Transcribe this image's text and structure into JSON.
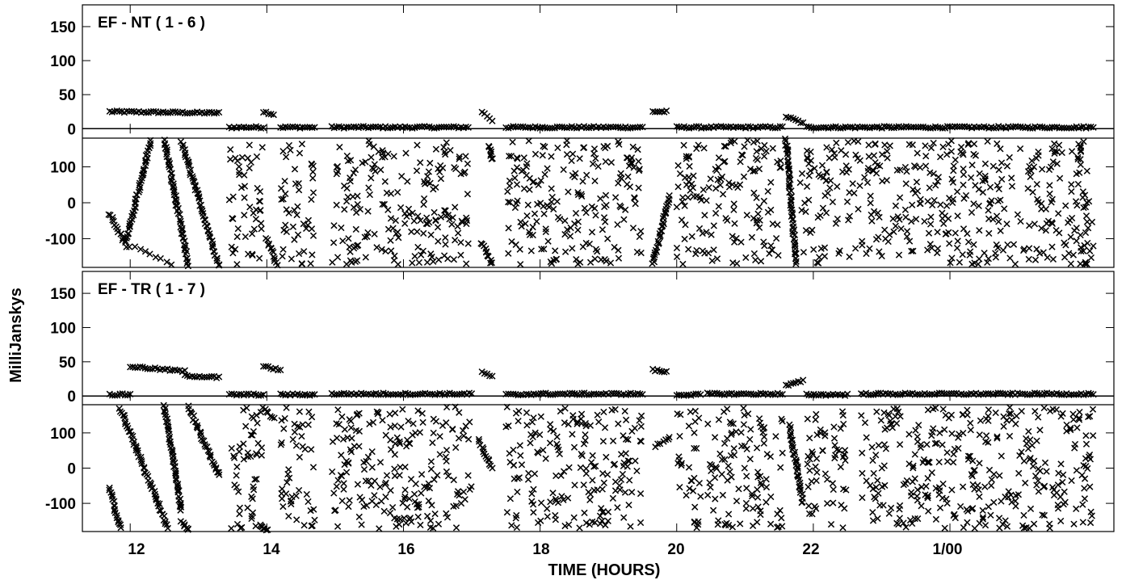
{
  "axes": {
    "xlabel": "TIME (HOURS)",
    "ylabel": "MilliJanskys",
    "x_tick_labels": [
      "12",
      "14",
      "16",
      "18",
      "20",
      "22",
      "1/00"
    ]
  },
  "chart_data": [
    {
      "type": "scatter",
      "title": "EF - NT ( 1 - 6 )",
      "xlabel": "TIME (HOURS)",
      "ylabel": "MilliJanskys",
      "xlim": [
        11.3,
        26.4
      ],
      "x_ticks": [
        12,
        14,
        16,
        18,
        20,
        22,
        24
      ],
      "x_tick_labels": [
        "12",
        "14",
        "16",
        "18",
        "20",
        "22",
        "1/00"
      ],
      "amplitude": {
        "ylim": [
          -8,
          182
        ],
        "y_ticks": [
          0,
          50,
          100,
          150
        ],
        "y_tick_labels": [
          "0",
          "50",
          "100",
          "150"
        ],
        "reference_line": 0,
        "segments": [
          {
            "x_start": 11.7,
            "x_end": 13.3,
            "y_start": 25,
            "y_end": 23
          },
          {
            "x_start": 13.45,
            "x_end": 13.95,
            "y_start": 2,
            "y_end": 2
          },
          {
            "x_start": 13.95,
            "x_end": 14.1,
            "y_start": 25,
            "y_end": 21
          },
          {
            "x_start": 14.2,
            "x_end": 14.7,
            "y_start": 2,
            "y_end": 2
          },
          {
            "x_start": 14.95,
            "x_end": 16.95,
            "y_start": 2,
            "y_end": 2
          },
          {
            "x_start": 17.15,
            "x_end": 17.3,
            "y_start": 25,
            "y_end": 12
          },
          {
            "x_start": 17.5,
            "x_end": 19.5,
            "y_start": 2,
            "y_end": 2
          },
          {
            "x_start": 19.65,
            "x_end": 19.85,
            "y_start": 25,
            "y_end": 25
          },
          {
            "x_start": 20.0,
            "x_end": 21.55,
            "y_start": 2,
            "y_end": 2
          },
          {
            "x_start": 21.6,
            "x_end": 21.85,
            "y_start": 18,
            "y_end": 8
          },
          {
            "x_start": 21.9,
            "x_end": 26.1,
            "y_start": 2,
            "y_end": 2
          }
        ]
      },
      "phase": {
        "ylim": [
          -180,
          180
        ],
        "y_ticks": [
          -100,
          0,
          100
        ],
        "y_tick_labels": [
          "-100",
          "0",
          "100"
        ],
        "reference_line": 180,
        "tracks": [
          {
            "x_start": 11.7,
            "x_end": 11.95,
            "y_start": -30,
            "y_end": -120
          },
          {
            "x_start": 11.95,
            "x_end": 12.3,
            "y_start": -100,
            "y_end": 175
          },
          {
            "x_start": 12.0,
            "x_end": 12.6,
            "y_start": -120,
            "y_end": -170
          },
          {
            "x_start": 12.5,
            "x_end": 12.85,
            "y_start": 175,
            "y_end": -175
          },
          {
            "x_start": 12.75,
            "x_end": 13.3,
            "y_start": 170,
            "y_end": -175
          },
          {
            "x_start": 14.0,
            "x_end": 14.15,
            "y_start": -100,
            "y_end": -170
          },
          {
            "x_start": 17.15,
            "x_end": 17.3,
            "y_start": -110,
            "y_end": -170
          },
          {
            "x_start": 17.25,
            "x_end": 17.3,
            "y_start": 160,
            "y_end": 120
          },
          {
            "x_start": 19.65,
            "x_end": 19.9,
            "y_start": -170,
            "y_end": 20
          },
          {
            "x_start": 21.6,
            "x_end": 21.75,
            "y_start": 175,
            "y_end": -170
          }
        ],
        "noise_blocks": [
          {
            "x_start": 13.45,
            "x_end": 13.95
          },
          {
            "x_start": 14.2,
            "x_end": 14.7
          },
          {
            "x_start": 14.95,
            "x_end": 16.95
          },
          {
            "x_start": 17.5,
            "x_end": 19.5
          },
          {
            "x_start": 20.0,
            "x_end": 21.55
          },
          {
            "x_start": 21.8,
            "x_end": 26.1
          }
        ]
      }
    },
    {
      "type": "scatter",
      "title": "EF - TR ( 1 - 7 )",
      "xlabel": "TIME (HOURS)",
      "ylabel": "MilliJanskys",
      "xlim": [
        11.3,
        26.4
      ],
      "x_ticks": [
        12,
        14,
        16,
        18,
        20,
        22,
        24
      ],
      "x_tick_labels": [
        "12",
        "14",
        "16",
        "18",
        "20",
        "22",
        "1/00"
      ],
      "amplitude": {
        "ylim": [
          -8,
          182
        ],
        "y_ticks": [
          0,
          50,
          100,
          150
        ],
        "y_tick_labels": [
          "0",
          "50",
          "100",
          "150"
        ],
        "reference_line": 0,
        "segments": [
          {
            "x_start": 11.7,
            "x_end": 12.0,
            "y_start": 2,
            "y_end": 2
          },
          {
            "x_start": 12.0,
            "x_end": 12.8,
            "y_start": 43,
            "y_end": 36
          },
          {
            "x_start": 12.8,
            "x_end": 13.3,
            "y_start": 30,
            "y_end": 27
          },
          {
            "x_start": 13.45,
            "x_end": 13.95,
            "y_start": 2,
            "y_end": 2
          },
          {
            "x_start": 13.95,
            "x_end": 14.2,
            "y_start": 43,
            "y_end": 38
          },
          {
            "x_start": 14.2,
            "x_end": 14.7,
            "y_start": 2,
            "y_end": 2
          },
          {
            "x_start": 14.95,
            "x_end": 17.0,
            "y_start": 3,
            "y_end": 3
          },
          {
            "x_start": 17.15,
            "x_end": 17.3,
            "y_start": 35,
            "y_end": 28
          },
          {
            "x_start": 17.5,
            "x_end": 17.75,
            "y_start": 2,
            "y_end": 2
          },
          {
            "x_start": 17.8,
            "x_end": 19.0,
            "y_start": 3,
            "y_end": 3
          },
          {
            "x_start": 19.05,
            "x_end": 19.5,
            "y_start": 3,
            "y_end": 3
          },
          {
            "x_start": 19.65,
            "x_end": 19.85,
            "y_start": 38,
            "y_end": 35
          },
          {
            "x_start": 20.0,
            "x_end": 20.35,
            "y_start": 2,
            "y_end": 2
          },
          {
            "x_start": 20.45,
            "x_end": 21.55,
            "y_start": 3,
            "y_end": 3
          },
          {
            "x_start": 21.6,
            "x_end": 21.85,
            "y_start": 15,
            "y_end": 22
          },
          {
            "x_start": 21.9,
            "x_end": 22.5,
            "y_start": 2,
            "y_end": 2
          },
          {
            "x_start": 22.7,
            "x_end": 26.1,
            "y_start": 3,
            "y_end": 3
          }
        ]
      },
      "phase": {
        "ylim": [
          -180,
          180
        ],
        "y_ticks": [
          -100,
          0,
          100
        ],
        "y_tick_labels": [
          "-100",
          "0",
          "100"
        ],
        "reference_line": 180,
        "tracks": [
          {
            "x_start": 11.7,
            "x_end": 11.85,
            "y_start": -60,
            "y_end": -170
          },
          {
            "x_start": 11.85,
            "x_end": 12.0,
            "y_start": 170,
            "y_end": 100
          },
          {
            "x_start": 12.0,
            "x_end": 12.55,
            "y_start": 100,
            "y_end": -170
          },
          {
            "x_start": 12.5,
            "x_end": 12.75,
            "y_start": 175,
            "y_end": -120
          },
          {
            "x_start": 12.75,
            "x_end": 12.85,
            "y_start": -150,
            "y_end": -175
          },
          {
            "x_start": 12.85,
            "x_end": 13.3,
            "y_start": 175,
            "y_end": -20
          },
          {
            "x_start": 13.95,
            "x_end": 14.1,
            "y_start": 170,
            "y_end": 140
          },
          {
            "x_start": 13.9,
            "x_end": 14.0,
            "y_start": -160,
            "y_end": -175
          },
          {
            "x_start": 17.1,
            "x_end": 17.3,
            "y_start": 80,
            "y_end": 0
          },
          {
            "x_start": 19.7,
            "x_end": 19.9,
            "y_start": 60,
            "y_end": 90
          },
          {
            "x_start": 21.65,
            "x_end": 21.85,
            "y_start": 120,
            "y_end": -100
          }
        ],
        "noise_blocks": [
          {
            "x_start": 13.45,
            "x_end": 13.95
          },
          {
            "x_start": 14.2,
            "x_end": 14.7
          },
          {
            "x_start": 14.95,
            "x_end": 17.0
          },
          {
            "x_start": 17.5,
            "x_end": 17.75
          },
          {
            "x_start": 17.8,
            "x_end": 19.0
          },
          {
            "x_start": 19.05,
            "x_end": 19.5
          },
          {
            "x_start": 20.0,
            "x_end": 20.35
          },
          {
            "x_start": 20.45,
            "x_end": 21.55
          },
          {
            "x_start": 21.9,
            "x_end": 22.5
          },
          {
            "x_start": 22.7,
            "x_end": 26.1
          }
        ]
      }
    }
  ]
}
